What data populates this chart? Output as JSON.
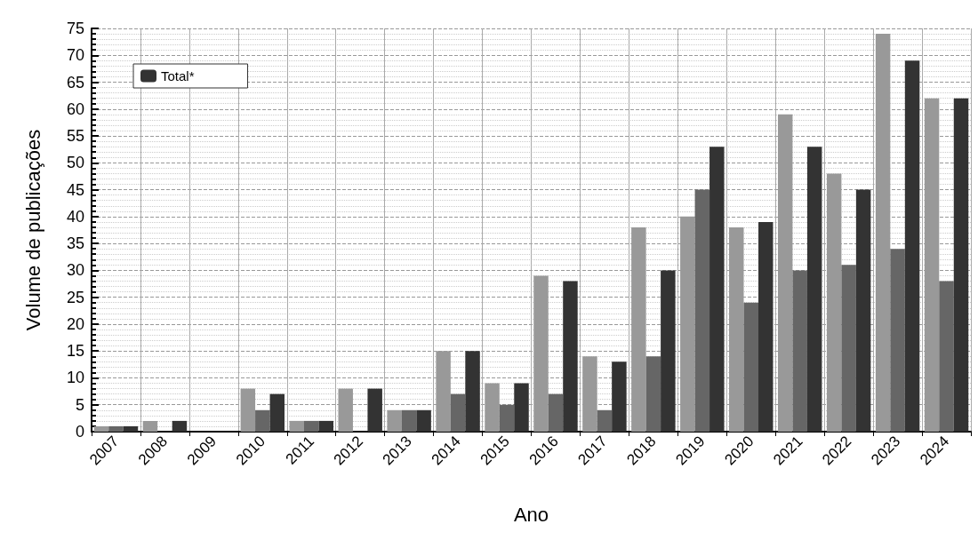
{
  "chart_data": {
    "type": "bar",
    "xlabel": "Ano",
    "ylabel": "Volume de publicações",
    "categories": [
      "2007",
      "2008",
      "2009",
      "2010",
      "2011",
      "2012",
      "2013",
      "2014",
      "2015",
      "2016",
      "2017",
      "2018",
      "2019",
      "2020",
      "2021",
      "2022",
      "2023",
      "2024"
    ],
    "series": [
      {
        "color": "#999999",
        "values": [
          1,
          2,
          0,
          8,
          2,
          8,
          4,
          15,
          9,
          29,
          14,
          38,
          40,
          38,
          59,
          48,
          74,
          62
        ]
      },
      {
        "color": "#666666",
        "values": [
          1,
          0,
          0,
          4,
          2,
          0,
          4,
          7,
          5,
          7,
          4,
          14,
          45,
          24,
          30,
          31,
          34,
          28
        ]
      },
      {
        "name": "Total*",
        "color": "#333333",
        "values": [
          1,
          2,
          0,
          7,
          2,
          8,
          4,
          15,
          9,
          28,
          13,
          30,
          53,
          39,
          53,
          45,
          69,
          62
        ]
      }
    ],
    "ylim": [
      0,
      75
    ],
    "yticks": [
      0,
      5,
      10,
      15,
      20,
      25,
      30,
      35,
      40,
      45,
      50,
      55,
      60,
      65,
      70,
      75
    ],
    "grid": true,
    "legend": "top left"
  }
}
